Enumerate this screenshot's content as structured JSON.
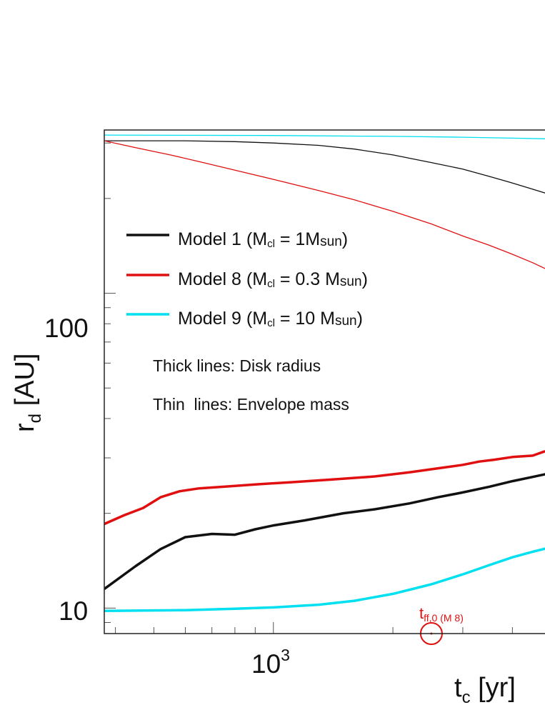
{
  "chart_data": {
    "type": "line",
    "title": "",
    "xlabel_base": "t",
    "xlabel_sub": "c",
    "xlabel_unit": " [yr]",
    "ylabel_base": "r",
    "ylabel_sub": "d",
    "ylabel_unit": " [AU]",
    "xscale": "log",
    "yscale": "log",
    "xlim": [
      375,
      5100
    ],
    "ylim": [
      8.3,
      330
    ],
    "yticks_labeled": [
      "100",
      "10"
    ],
    "xtick_labeled_base": "10",
    "xtick_labeled_exp": "3",
    "legend_position": "upper-left",
    "legend": [
      {
        "model": "Model 1",
        "paren_open": " (M",
        "sub": "cl",
        "mid": " = 1M",
        "sub2": "sun",
        "close": ")",
        "color": "#111111"
      },
      {
        "model": "Model 8",
        "paren_open": " (M",
        "sub": "cl",
        "mid": " = 0.3 M",
        "sub2": "sun",
        "close": ")",
        "color": "#e01010"
      },
      {
        "model": "Model 9",
        "paren_open": " (M",
        "sub": "cl",
        "mid": " = 10 M",
        "sub2": "sun",
        "close": ")",
        "color": "#00e0f0"
      }
    ],
    "notes": [
      "Thick lines: Disk radius",
      "Thin  lines: Envelope mass"
    ],
    "annotation": {
      "base": "t",
      "sub": "ff,0 (M 8)",
      "x": 2500,
      "color": "#e01010"
    },
    "series": [
      {
        "name": "Model 1 disk radius",
        "color": "#111111",
        "width": "thick",
        "x": [
          375,
          450,
          520,
          600,
          700,
          800,
          900,
          1000,
          1200,
          1500,
          1800,
          2200,
          2600,
          3000,
          3500,
          4000,
          4500,
          5100
        ],
        "y": [
          11.5,
          13.6,
          15.4,
          16.8,
          17.2,
          17.1,
          17.8,
          18.3,
          19.0,
          20.0,
          20.6,
          21.5,
          22.5,
          23.3,
          24.3,
          25.3,
          26.1,
          27.0
        ]
      },
      {
        "name": "Model 8 disk radius",
        "color": "#e01010",
        "width": "thick",
        "x": [
          375,
          420,
          470,
          520,
          580,
          650,
          750,
          900,
          1100,
          1400,
          1800,
          2200,
          2600,
          3000,
          3300,
          3600,
          4000,
          4500,
          4800,
          5100
        ],
        "y": [
          18.5,
          19.7,
          20.8,
          22.5,
          23.5,
          24.0,
          24.3,
          24.7,
          25.1,
          25.6,
          26.2,
          27.0,
          27.8,
          28.5,
          29.2,
          29.6,
          30.2,
          30.5,
          31.4,
          31.9
        ]
      },
      {
        "name": "Model 9 disk radius",
        "color": "#00e0f0",
        "width": "thick",
        "x": [
          375,
          600,
          800,
          1000,
          1300,
          1600,
          2000,
          2500,
          3000,
          3500,
          4000,
          4500,
          5100
        ],
        "y": [
          9.8,
          9.85,
          9.95,
          10.05,
          10.25,
          10.55,
          11.1,
          11.9,
          12.8,
          13.7,
          14.5,
          15.1,
          15.7
        ]
      },
      {
        "name": "Model 1 envelope mass",
        "color": "#111111",
        "width": "thin",
        "x": [
          375,
          600,
          800,
          1000,
          1300,
          1600,
          2000,
          2500,
          3000,
          3500,
          4000,
          4500,
          5100
        ],
        "y": [
          305,
          305,
          303,
          300,
          295,
          287,
          275,
          260,
          248,
          235,
          224,
          214,
          204
        ]
      },
      {
        "name": "Model 8 envelope mass",
        "color": "#e01010",
        "width": "thin",
        "x": [
          375,
          450,
          550,
          650,
          800,
          1000,
          1300,
          1600,
          2000,
          2500,
          3000,
          3500,
          4000,
          4500,
          5100
        ],
        "y": [
          305,
          290,
          275,
          262,
          246,
          230,
          212,
          198,
          182,
          166,
          152,
          142,
          133,
          125,
          116
        ]
      },
      {
        "name": "Model 9 envelope mass",
        "color": "#00e0f0",
        "width": "thin",
        "x": [
          375,
          1000,
          2000,
          3000,
          4000,
          5100
        ],
        "y": [
          318,
          317,
          315,
          313,
          311,
          309
        ]
      }
    ]
  }
}
